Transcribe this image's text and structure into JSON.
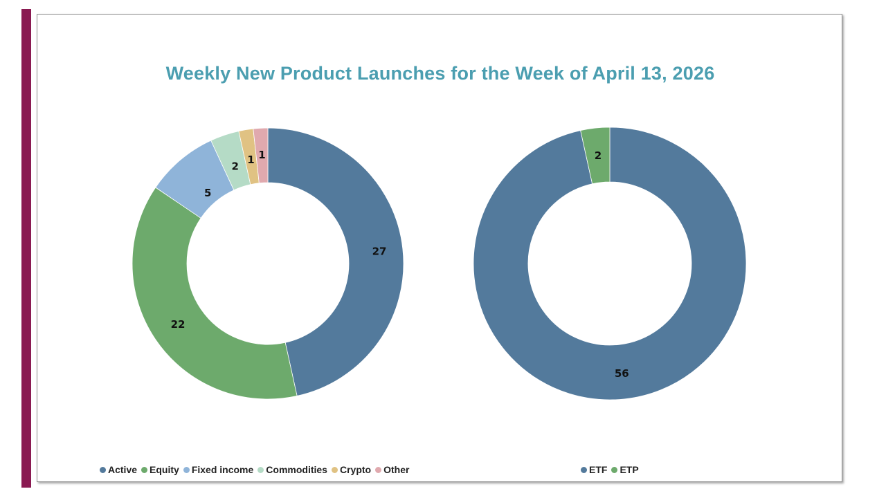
{
  "chart_data": [
    {
      "type": "donut",
      "title": "Weekly New Product Launches for the Week of April 13, 2026",
      "categories": [
        "Active",
        "Equity",
        "Fixed income",
        "Commodities",
        "Crypto",
        "Other"
      ],
      "values": [
        27,
        22,
        5,
        2,
        1,
        1
      ],
      "colors": [
        "#537a9c",
        "#6daa6c",
        "#8fb4d9",
        "#b5dbc6",
        "#e0c283",
        "#e0a9ae"
      ],
      "legend_position": "bottom"
    },
    {
      "type": "donut",
      "categories": [
        "ETF",
        "ETP"
      ],
      "values": [
        56,
        2
      ],
      "colors": [
        "#537a9c",
        "#6daa6c"
      ],
      "legend_position": "bottom"
    }
  ]
}
